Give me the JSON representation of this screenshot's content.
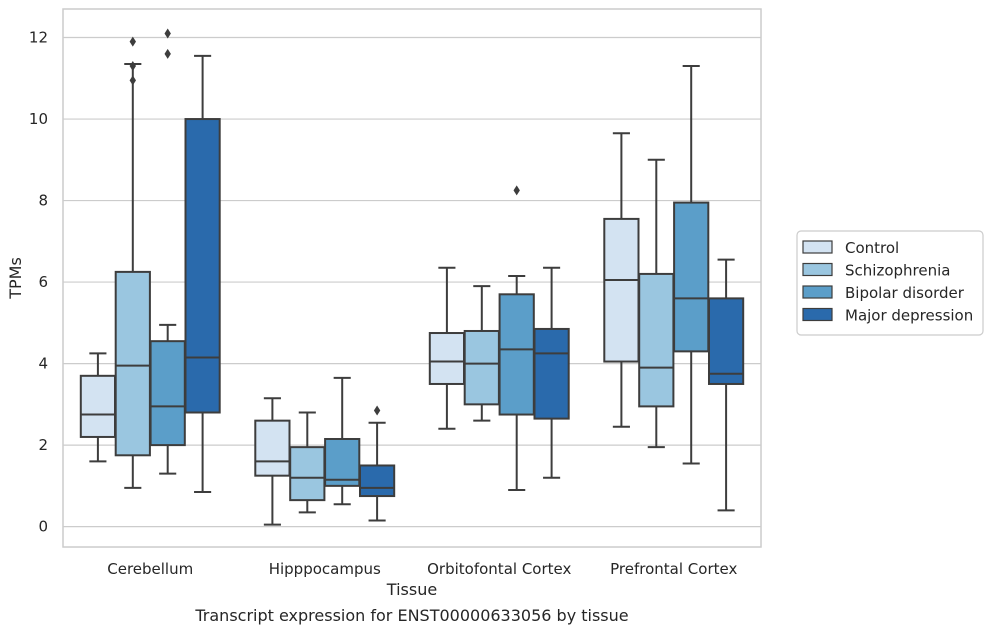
{
  "caption": "Transcript expression for ENST00000633056 by tissue",
  "chart_data": {
    "type": "boxplot",
    "title": "",
    "xlabel": "Tissue",
    "ylabel": "TPMs",
    "ylim": [
      -0.5,
      12.7
    ],
    "yticks": [
      0,
      2,
      4,
      6,
      8,
      10,
      12
    ],
    "grid": true,
    "legend_position": "right",
    "categories": [
      "Cerebellum",
      "Hipppocampus",
      "Orbitofontal Cortex",
      "Prefrontal Cortex"
    ],
    "series": [
      {
        "name": "Control",
        "color": "#d3e3f2",
        "boxes": [
          {
            "whislo": 1.6,
            "q1": 2.2,
            "med": 2.75,
            "q3": 3.7,
            "whishi": 4.25,
            "fliers": []
          },
          {
            "whislo": 0.05,
            "q1": 1.25,
            "med": 1.6,
            "q3": 2.6,
            "whishi": 3.15,
            "fliers": []
          },
          {
            "whislo": 2.4,
            "q1": 3.5,
            "med": 4.05,
            "q3": 4.75,
            "whishi": 6.35,
            "fliers": []
          },
          {
            "whislo": 2.45,
            "q1": 4.05,
            "med": 6.05,
            "q3": 7.55,
            "whishi": 9.65,
            "fliers": []
          }
        ]
      },
      {
        "name": "Schizophrenia",
        "color": "#9ac6e0",
        "boxes": [
          {
            "whislo": 0.95,
            "q1": 1.75,
            "med": 3.95,
            "q3": 6.25,
            "whishi": 11.35,
            "fliers": [
              10.95,
              11.3,
              11.9
            ]
          },
          {
            "whislo": 0.35,
            "q1": 0.65,
            "med": 1.2,
            "q3": 1.95,
            "whishi": 2.8,
            "fliers": []
          },
          {
            "whislo": 2.6,
            "q1": 3.0,
            "med": 4.0,
            "q3": 4.8,
            "whishi": 5.9,
            "fliers": []
          },
          {
            "whislo": 1.95,
            "q1": 2.95,
            "med": 3.9,
            "q3": 6.2,
            "whishi": 9.0,
            "fliers": []
          }
        ]
      },
      {
        "name": "Bipolar disorder",
        "color": "#5b9ec9",
        "boxes": [
          {
            "whislo": 1.3,
            "q1": 2.0,
            "med": 2.95,
            "q3": 4.55,
            "whishi": 4.95,
            "fliers": [
              11.6,
              12.1
            ]
          },
          {
            "whislo": 0.55,
            "q1": 1.0,
            "med": 1.15,
            "q3": 2.15,
            "whishi": 3.65,
            "fliers": []
          },
          {
            "whislo": 0.9,
            "q1": 2.75,
            "med": 4.35,
            "q3": 5.7,
            "whishi": 6.15,
            "fliers": [
              8.25
            ]
          },
          {
            "whislo": 1.55,
            "q1": 4.3,
            "med": 5.6,
            "q3": 7.95,
            "whishi": 11.3,
            "fliers": []
          }
        ]
      },
      {
        "name": "Major depression",
        "color": "#2a6aac",
        "boxes": [
          {
            "whislo": 0.85,
            "q1": 2.8,
            "med": 4.15,
            "q3": 10.0,
            "whishi": 11.55,
            "fliers": []
          },
          {
            "whislo": 0.15,
            "q1": 0.75,
            "med": 0.95,
            "q3": 1.5,
            "whishi": 2.55,
            "fliers": [
              2.85
            ]
          },
          {
            "whislo": 1.2,
            "q1": 2.65,
            "med": 4.25,
            "q3": 4.85,
            "whishi": 6.35,
            "fliers": []
          },
          {
            "whislo": 0.4,
            "q1": 3.5,
            "med": 3.75,
            "q3": 5.6,
            "whishi": 6.55,
            "fliers": []
          }
        ]
      }
    ]
  }
}
